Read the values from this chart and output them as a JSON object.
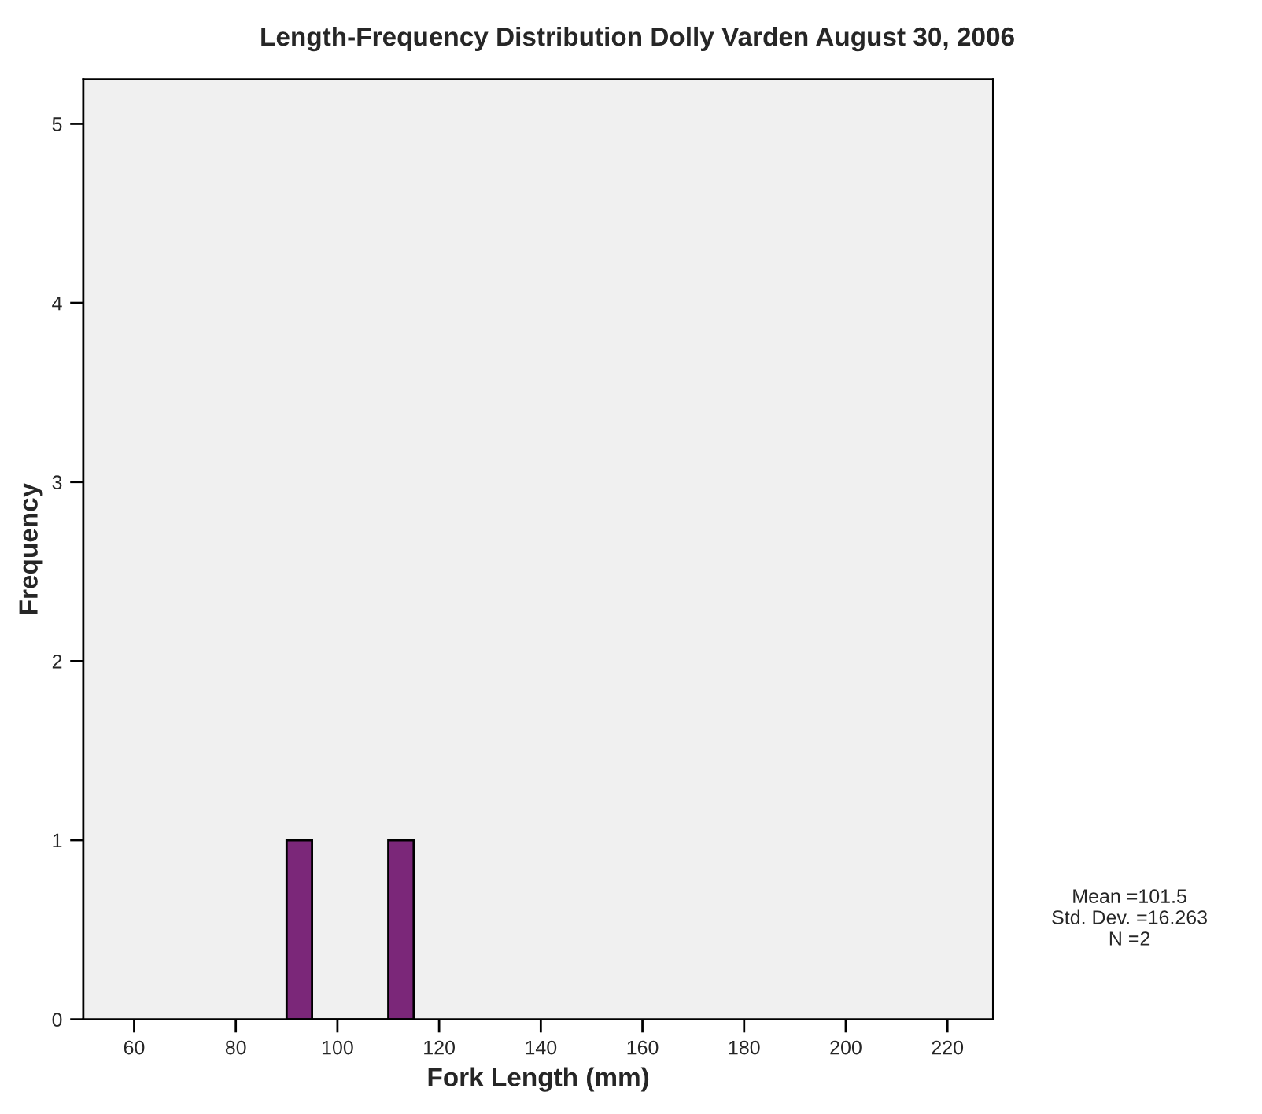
{
  "chart_data": {
    "type": "histogram",
    "title": "Length-Frequency Distribution Dolly Varden August 30, 2006",
    "xlabel": "Fork Length (mm)",
    "ylabel": "Frequency",
    "bins": [
      90,
      95,
      100,
      105,
      110,
      115
    ],
    "values": [
      1,
      0,
      0,
      0,
      1
    ],
    "color": "#7b2779",
    "xlim": [
      50,
      229
    ],
    "xticks": [
      60,
      80,
      100,
      120,
      140,
      160,
      180,
      200,
      220
    ],
    "ylim": [
      0,
      5.25
    ],
    "yticks": [
      0,
      1,
      2,
      3,
      4,
      5
    ],
    "grid": false,
    "legend": false,
    "annotations": [
      "Mean =101.5\nStd. Dev. =16.263\nN =2"
    ]
  }
}
